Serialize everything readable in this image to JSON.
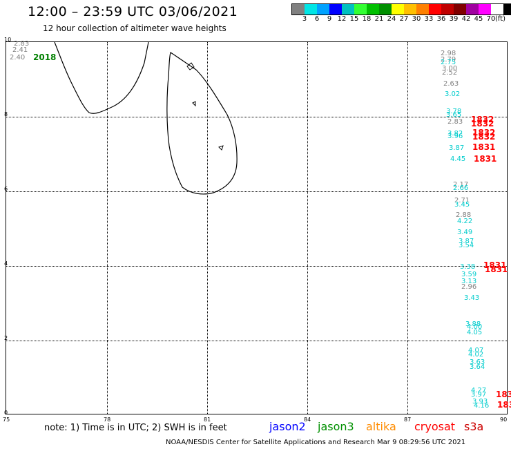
{
  "title": "12:00 – 23:59 UTC 03/06/2021",
  "subtitle": "12 hour collection of altimeter wave heights",
  "legend": {
    "colors": [
      "#808080",
      "#00e5e5",
      "#00a2ff",
      "#0000ff",
      "#00c0c0",
      "#33ff33",
      "#00c000",
      "#009000",
      "#ffff00",
      "#ffc000",
      "#ff8000",
      "#ff0000",
      "#c00000",
      "#800000",
      "#a000a0",
      "#ff00ff",
      "#ffffff",
      "#000000"
    ],
    "labels": [
      "3",
      "6",
      "9",
      "12",
      "15",
      "18",
      "21",
      "24",
      "27",
      "30",
      "33",
      "36",
      "39",
      "42",
      "45",
      "70"
    ],
    "unit": "(ft)"
  },
  "axes": {
    "x_ticks": [
      "75",
      "78",
      "81",
      "84",
      "87",
      "90"
    ],
    "y_ticks": [
      "10",
      "8",
      "6",
      "4",
      "2",
      "0"
    ]
  },
  "observations": [
    {
      "t": "2.83",
      "c": "#808080"
    },
    {
      "t": "2.41",
      "c": "#808080"
    },
    {
      "t": "2.40",
      "c": "#808080"
    },
    {
      "t": "2018",
      "c": "#008000",
      "big": true
    },
    {
      "t": "2.98",
      "c": "#808080"
    },
    {
      "t": "2.79",
      "c": "#808080"
    },
    {
      "t": "2.75",
      "c": "#00cccc"
    },
    {
      "t": "3.00",
      "c": "#808080"
    },
    {
      "t": "2.52",
      "c": "#808080"
    },
    {
      "t": "2.63",
      "c": "#808080"
    },
    {
      "t": "3.02",
      "c": "#00cccc"
    },
    {
      "t": "3.78",
      "c": "#00cccc"
    },
    {
      "t": "3.65",
      "c": "#00cccc"
    },
    {
      "t": "2.83",
      "c": "#808080"
    },
    {
      "t": "1832",
      "c": "#ff0000",
      "big": true
    },
    {
      "t": "1832",
      "c": "#ff0000",
      "big": true
    },
    {
      "t": "3.82",
      "c": "#00cccc"
    },
    {
      "t": "3.96",
      "c": "#00cccc"
    },
    {
      "t": "1832",
      "c": "#ff0000",
      "big": true
    },
    {
      "t": "1832",
      "c": "#ff0000",
      "big": true
    },
    {
      "t": "3.87",
      "c": "#00cccc"
    },
    {
      "t": "1831",
      "c": "#ff0000",
      "big": true
    },
    {
      "t": "4.45",
      "c": "#00cccc"
    },
    {
      "t": "1831",
      "c": "#ff0000",
      "big": true
    },
    {
      "t": "2.17",
      "c": "#808080"
    },
    {
      "t": "2.66",
      "c": "#00cccc"
    },
    {
      "t": "2.71",
      "c": "#808080"
    },
    {
      "t": "3.45",
      "c": "#00cccc"
    },
    {
      "t": "2.88",
      "c": "#808080"
    },
    {
      "t": "4.22",
      "c": "#00cccc"
    },
    {
      "t": "3.49",
      "c": "#00cccc"
    },
    {
      "t": "3.87",
      "c": "#00cccc"
    },
    {
      "t": "3.54",
      "c": "#00cccc"
    },
    {
      "t": "3.38",
      "c": "#00cccc"
    },
    {
      "t": "1831",
      "c": "#ff0000",
      "big": true
    },
    {
      "t": "1831",
      "c": "#ff0000",
      "big": true
    },
    {
      "t": "3.59",
      "c": "#00cccc"
    },
    {
      "t": "3.13",
      "c": "#00cccc"
    },
    {
      "t": "2.96",
      "c": "#808080"
    },
    {
      "t": "3.43",
      "c": "#00cccc"
    },
    {
      "t": "3.88",
      "c": "#00cccc"
    },
    {
      "t": "4.00",
      "c": "#00cccc"
    },
    {
      "t": "4.05",
      "c": "#00cccc"
    },
    {
      "t": "4.07",
      "c": "#00cccc"
    },
    {
      "t": "4.02",
      "c": "#00cccc"
    },
    {
      "t": "3.63",
      "c": "#00cccc"
    },
    {
      "t": "3.64",
      "c": "#00cccc"
    },
    {
      "t": "4.27",
      "c": "#00cccc"
    },
    {
      "t": "3.97",
      "c": "#00cccc"
    },
    {
      "t": "183",
      "c": "#ff0000",
      "big": true
    },
    {
      "t": "3.93",
      "c": "#00cccc"
    },
    {
      "t": "4.16",
      "c": "#00cccc"
    },
    {
      "t": "183",
      "c": "#ff0000",
      "big": true
    }
  ],
  "note": "note:  1) Time is in UTC;  2) SWH is in feet",
  "satellites": [
    {
      "name": "jason2",
      "color": "#0000ff"
    },
    {
      "name": "jason3",
      "color": "#009000"
    },
    {
      "name": "altika",
      "color": "#ff8c00"
    },
    {
      "name": "cryosat",
      "color": "#ff0000"
    },
    {
      "name": "s3a",
      "color": "#cc0000"
    }
  ],
  "credit": "NOAA/NESDIS Center for Satellite Applications and Research    Mar  9 08:29:56 UTC 2021"
}
